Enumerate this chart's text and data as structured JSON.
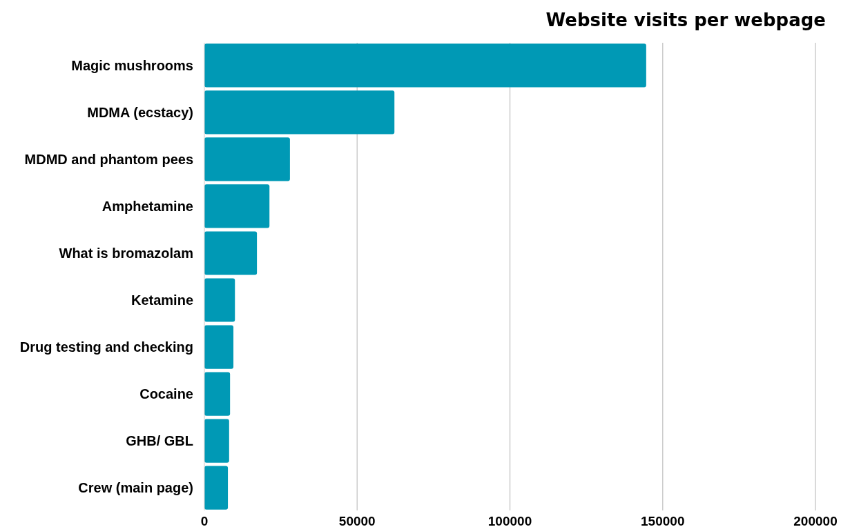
{
  "chart_data": {
    "type": "bar",
    "orientation": "horizontal",
    "title": "Website visits per webpage",
    "categories": [
      "Magic mushrooms",
      "MDMA (ecstacy)",
      "MDMD and phantom pees",
      "Amphetamine",
      "What is bromazolam",
      "Ketamine",
      "Drug testing and checking",
      "Cocaine",
      "GHB/ GBL",
      "Crew (main page)"
    ],
    "values": [
      144600,
      62200,
      28000,
      21300,
      17200,
      10000,
      9500,
      8400,
      8100,
      7700
    ],
    "color": "#0099b5",
    "xlim": [
      0,
      200000
    ],
    "xticks": [
      0,
      50000,
      100000,
      150000,
      200000
    ],
    "grid": "x"
  }
}
